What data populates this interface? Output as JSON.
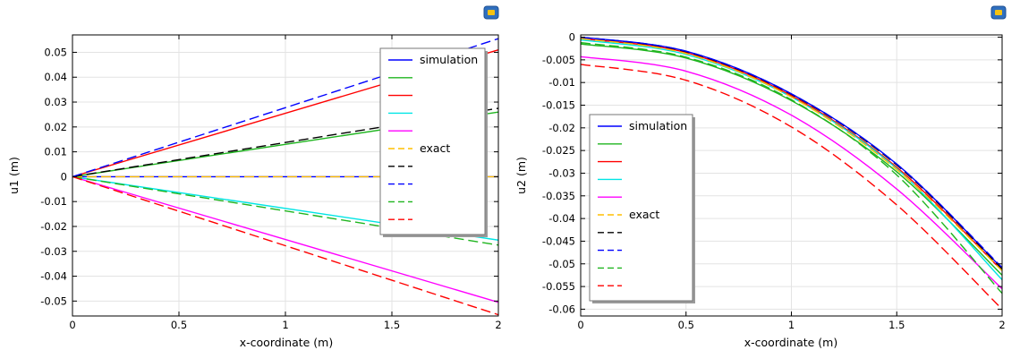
{
  "chart_data": [
    {
      "type": "line",
      "xlabel": "x-coordinate (m)",
      "ylabel": "u1 (m)",
      "xlim": [
        0,
        2
      ],
      "ylim": [
        -0.056,
        0.057
      ],
      "x_ticks": [
        "0",
        "0.5",
        "1",
        "1.5",
        "2"
      ],
      "y_ticks": [
        "0.05",
        "0.04",
        "0.03",
        "0.02",
        "0.01",
        "0",
        "-0.01",
        "-0.02",
        "-0.03",
        "-0.04",
        "-0.05"
      ],
      "grid": true,
      "legend_position": "top-right",
      "legend": [
        "simulation",
        "",
        "",
        "",
        "",
        "exact",
        "",
        "",
        "",
        ""
      ],
      "series": [
        {
          "name": "simulation",
          "color": "#0000ff",
          "dash": "solid",
          "x": [
            0,
            2
          ],
          "y": [
            0,
            0
          ]
        },
        {
          "color": "#1fb51f",
          "dash": "solid",
          "x": [
            0,
            2
          ],
          "y": [
            0,
            0.026
          ]
        },
        {
          "color": "#ff0000",
          "dash": "solid",
          "x": [
            0,
            2
          ],
          "y": [
            0,
            0.051
          ]
        },
        {
          "color": "#00e5e5",
          "dash": "solid",
          "x": [
            0,
            2
          ],
          "y": [
            0,
            -0.0255
          ]
        },
        {
          "color": "#ff00ff",
          "dash": "solid",
          "x": [
            0,
            2
          ],
          "y": [
            0,
            -0.0505
          ]
        },
        {
          "name": "exact",
          "color": "#ffbf00",
          "dash": "dashed",
          "x": [
            0,
            2
          ],
          "y": [
            0,
            0
          ]
        },
        {
          "color": "#000000",
          "dash": "dashed",
          "x": [
            0,
            2
          ],
          "y": [
            0,
            0.0275
          ]
        },
        {
          "color": "#0000ff",
          "dash": "dashed",
          "x": [
            0,
            2
          ],
          "y": [
            0,
            0.0555
          ]
        },
        {
          "color": "#1fb51f",
          "dash": "dashed",
          "x": [
            0,
            2
          ],
          "y": [
            0,
            -0.0275
          ]
        },
        {
          "color": "#ff0000",
          "dash": "dashed",
          "x": [
            0,
            2
          ],
          "y": [
            0,
            -0.0555
          ]
        }
      ]
    },
    {
      "type": "line",
      "xlabel": "x-coordinate (m)",
      "ylabel": "u2 (m)",
      "xlim": [
        0,
        2
      ],
      "ylim": [
        -0.0615,
        0.0005
      ],
      "x_ticks": [
        "0",
        "0.5",
        "1",
        "1.5",
        "2"
      ],
      "y_ticks": [
        "0",
        "-0.005",
        "-0.01",
        "-0.015",
        "-0.02",
        "-0.025",
        "-0.03",
        "-0.035",
        "-0.04",
        "-0.045",
        "-0.05",
        "-0.055",
        "-0.06"
      ],
      "grid": true,
      "legend_position": "bottom-left",
      "legend": [
        "simulation",
        "",
        "",
        "",
        "",
        "exact",
        "",
        "",
        "",
        ""
      ],
      "series": [
        {
          "name": "simulation",
          "color": "#0000ff",
          "dash": "solid",
          "x": [
            0,
            0.5,
            1,
            1.5,
            2
          ],
          "y": [
            0,
            -0.0031,
            -0.0125,
            -0.028,
            -0.051
          ]
        },
        {
          "color": "#1fb51f",
          "dash": "solid",
          "x": [
            0,
            0.5,
            1,
            1.5,
            2
          ],
          "y": [
            -0.0015,
            -0.0046,
            -0.014,
            -0.0297,
            -0.0525
          ]
        },
        {
          "color": "#ff0000",
          "dash": "solid",
          "x": [
            0,
            0.5,
            1,
            1.5,
            2
          ],
          "y": [
            -0.0003,
            -0.0034,
            -0.0129,
            -0.0287,
            -0.0515
          ]
        },
        {
          "color": "#00e5e5",
          "dash": "solid",
          "x": [
            0,
            0.5,
            1,
            1.5,
            2
          ],
          "y": [
            -0.0006,
            -0.0038,
            -0.0132,
            -0.029,
            -0.0535
          ]
        },
        {
          "color": "#ff00ff",
          "dash": "solid",
          "x": [
            0,
            0.5,
            1,
            1.5,
            2
          ],
          "y": [
            -0.0043,
            -0.0075,
            -0.0172,
            -0.0335,
            -0.0555
          ]
        },
        {
          "name": "exact",
          "color": "#ffbf00",
          "dash": "dashed",
          "x": [
            0,
            0.5,
            1,
            1.5,
            2
          ],
          "y": [
            -0.0003,
            -0.0036,
            -0.0132,
            -0.0292,
            -0.0515
          ]
        },
        {
          "color": "#000000",
          "dash": "dashed",
          "x": [
            0,
            0.5,
            1,
            1.5,
            2
          ],
          "y": [
            0,
            -0.0032,
            -0.0126,
            -0.0282,
            -0.0511
          ]
        },
        {
          "color": "#0000ff",
          "dash": "dashed",
          "x": [
            0,
            0.5,
            1,
            1.5,
            2
          ],
          "y": [
            0,
            -0.0031,
            -0.0125,
            -0.028,
            -0.0508
          ]
        },
        {
          "color": "#1fb51f",
          "dash": "dashed",
          "x": [
            0,
            0.5,
            1,
            1.5,
            2
          ],
          "y": [
            -0.0012,
            -0.0044,
            -0.0138,
            -0.0304,
            -0.0565
          ]
        },
        {
          "color": "#ff0000",
          "dash": "dashed",
          "x": [
            0,
            0.5,
            1,
            1.5,
            2
          ],
          "y": [
            -0.006,
            -0.0095,
            -0.0198,
            -0.037,
            -0.06
          ]
        }
      ]
    }
  ]
}
